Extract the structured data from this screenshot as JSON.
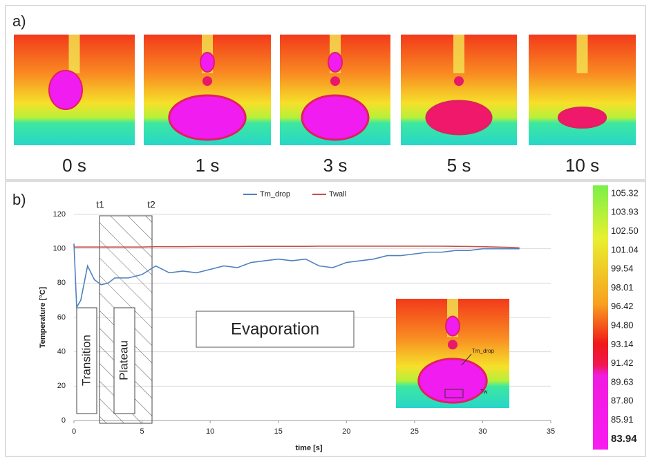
{
  "panel_a": {
    "label": "a)",
    "frames": [
      "0 s",
      "1 s",
      "3 s",
      "5 s",
      "10 s"
    ]
  },
  "chart_data": {
    "type": "line",
    "label": "b)",
    "x_label": "time [s]",
    "y_label": "Temperature [°C]",
    "x": [
      0,
      0.2,
      0.5,
      1,
      1.5,
      2,
      2.5,
      3,
      4,
      5,
      6,
      7,
      8,
      9,
      10,
      11,
      12,
      13,
      14,
      15,
      16,
      17,
      18,
      19,
      20,
      21,
      22,
      23,
      24,
      25,
      26,
      27,
      28,
      29,
      30,
      31,
      32,
      32.7
    ],
    "series": [
      {
        "name": "Tm_drop",
        "color": "#4f81bd",
        "values": [
          103,
          66,
          70,
          90,
          82,
          79,
          80,
          83,
          83,
          85,
          90,
          86,
          87,
          86,
          88,
          90,
          89,
          92,
          93,
          94,
          93,
          94,
          90,
          89,
          92,
          93,
          94,
          96,
          96,
          97,
          98,
          98,
          99,
          99,
          100,
          100,
          100,
          100
        ]
      },
      {
        "name": "Twall",
        "color": "#c0504d",
        "values": [
          101,
          101,
          101,
          101,
          101,
          101,
          101,
          101,
          101,
          101,
          101.2,
          101.2,
          101.2,
          101.3,
          101.3,
          101.3,
          101.3,
          101.4,
          101.4,
          101.4,
          101.4,
          101.4,
          101.5,
          101.5,
          101.5,
          101.5,
          101.5,
          101.5,
          101.5,
          101.5,
          101.5,
          101.5,
          101.4,
          101.3,
          101.2,
          101,
          100.8,
          100.5
        ]
      }
    ],
    "xlim": [
      0,
      35
    ],
    "xticks": [
      0,
      5,
      10,
      15,
      20,
      25,
      30,
      35
    ],
    "ylim": [
      0,
      120
    ],
    "yticks": [
      0,
      20,
      40,
      60,
      80,
      100,
      120
    ],
    "grid": true,
    "legend": "top",
    "annotations": {
      "t1": "t1",
      "t2": "t2",
      "transition": "Transition",
      "plateau": "Plateau",
      "evaporation": "Evaporation",
      "inset_drop": "Tm_drop",
      "inset_wall": "Tw"
    }
  },
  "colorbar": {
    "labels": [
      "105.32",
      "103.93",
      "102.50",
      "101.04",
      "99.54",
      "98.01",
      "96.42",
      "94.80",
      "93.14",
      "91.42",
      "89.63",
      "87.80",
      "85.91",
      "83.94"
    ]
  }
}
